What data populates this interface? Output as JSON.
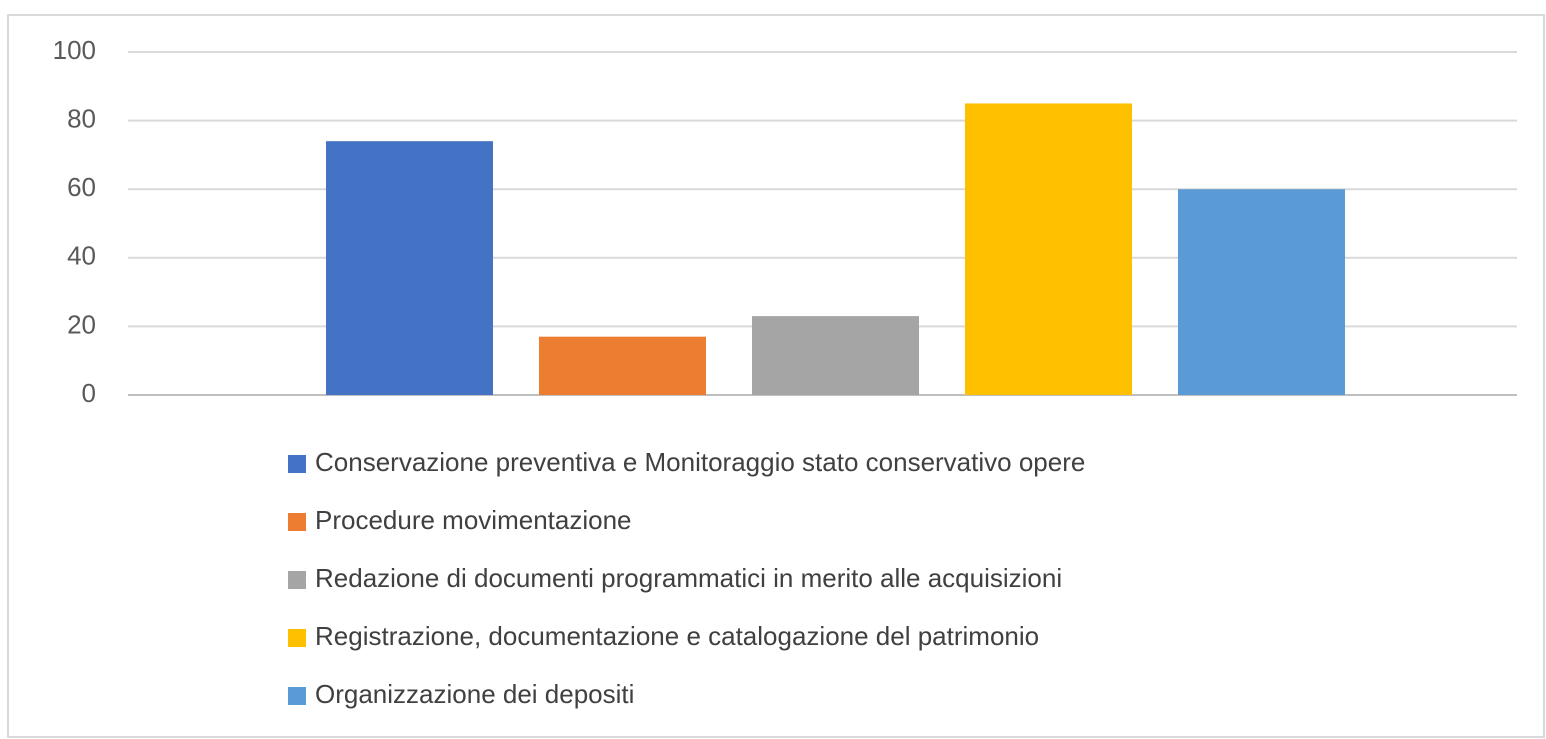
{
  "chart_data": {
    "type": "bar",
    "categories": [
      null
    ],
    "series": [
      {
        "name": "Conservazione preventiva e Monitoraggio stato conservativo opere",
        "color": "#4472c4",
        "values": [
          74
        ]
      },
      {
        "name": "Procedure movimentazione",
        "color": "#ed7d31",
        "values": [
          17
        ]
      },
      {
        "name": "Redazione di documenti programmatici in merito alle acquisizioni",
        "color": "#a5a5a5",
        "values": [
          23
        ]
      },
      {
        "name": "Registrazione, documentazione e catalogazione del patrimonio",
        "color": "#ffc000",
        "values": [
          85
        ]
      },
      {
        "name": "Organizzazione dei depositi",
        "color": "#5b9bd5",
        "values": [
          60
        ]
      }
    ],
    "ylim": [
      0,
      100
    ],
    "yticks": [
      0,
      20,
      40,
      60,
      80,
      100
    ],
    "grid": true,
    "legend": "bottom"
  }
}
